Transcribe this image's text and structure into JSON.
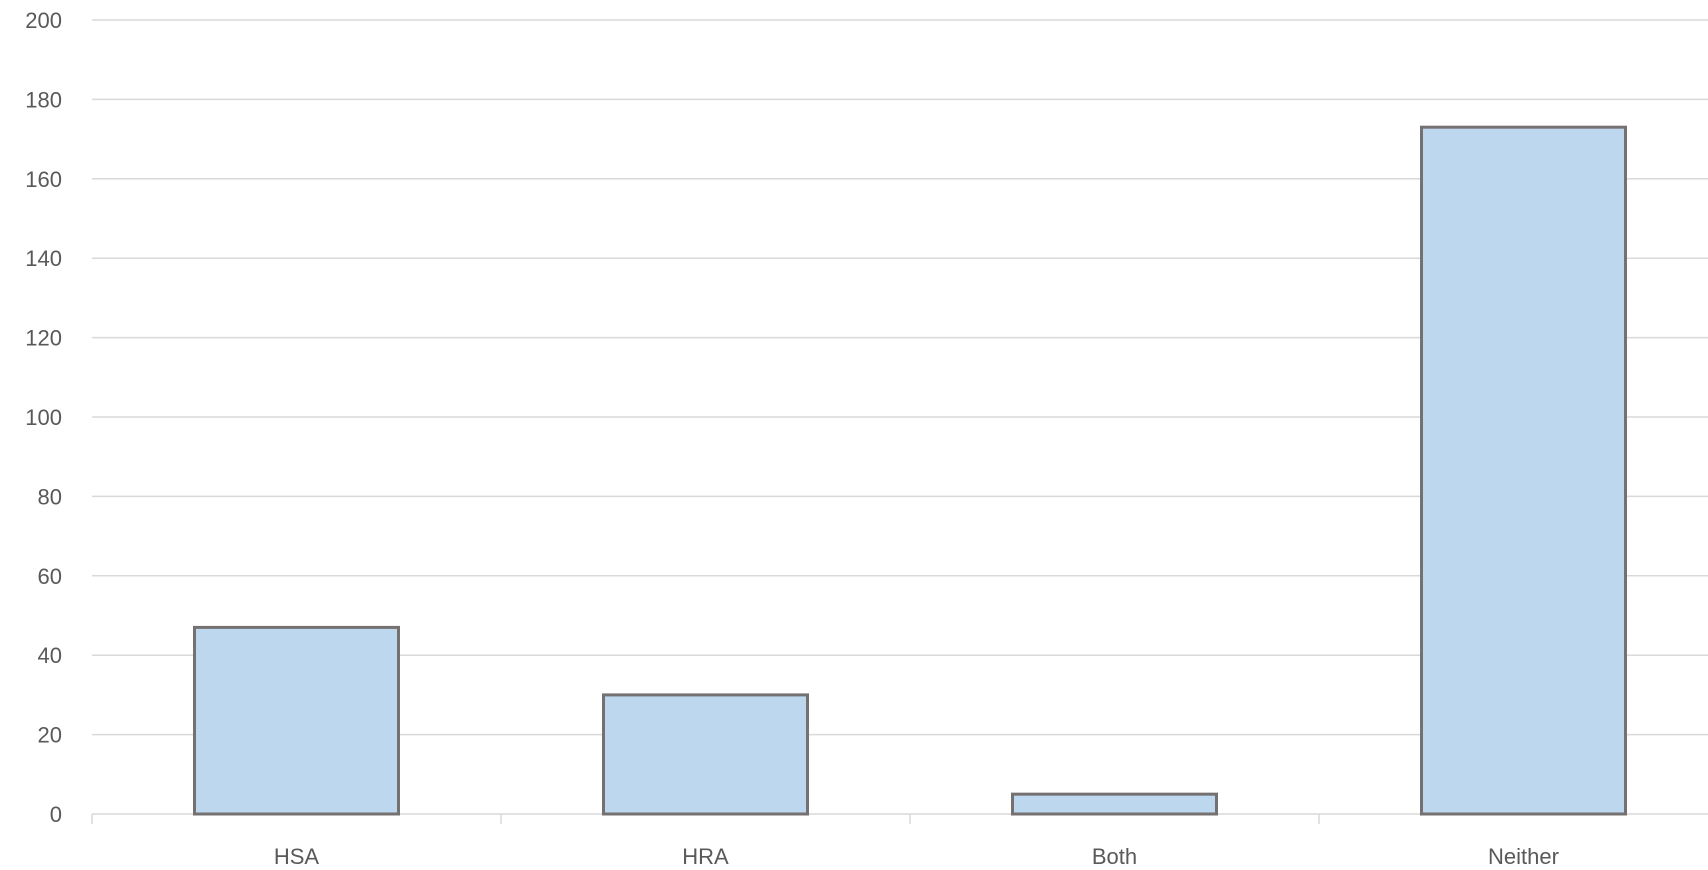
{
  "chart_data": {
    "type": "bar",
    "title": "",
    "xlabel": "",
    "ylabel": "",
    "categories": [
      "HSA",
      "HRA",
      "Both",
      "Neither"
    ],
    "values": [
      47,
      30,
      5,
      173
    ],
    "ylim": [
      0,
      200
    ],
    "yticks": [
      0,
      20,
      40,
      60,
      80,
      100,
      120,
      140,
      160,
      180,
      200
    ],
    "ytick_labels": [
      "0",
      "20",
      "40",
      "60",
      "80",
      "100",
      "120",
      "140",
      "160",
      "180",
      "200"
    ],
    "grid": true,
    "legend": "none",
    "colors": {
      "bar_fill": "#bdd7ee",
      "bar_stroke": "#767171",
      "grid": "#d9d9d9",
      "tick_text": "#595959"
    }
  }
}
